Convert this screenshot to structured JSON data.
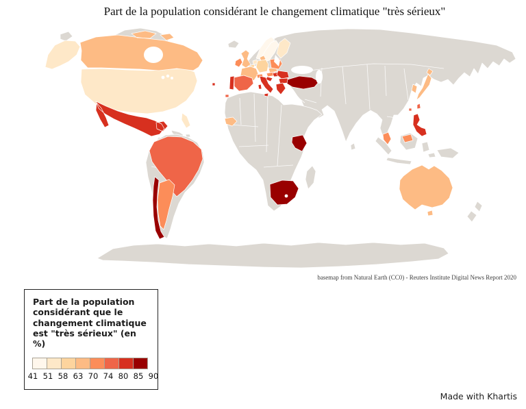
{
  "title": "Part de la population considérant le changement climatique \"très sérieux\"",
  "attribution": "basemap from Natural Earth (CC0) - Reuters Institute Digital News Report 2020",
  "credit": "Made with Khartis",
  "legend": {
    "title": "Part de la population considérant que le changement climatique est \"très sérieux\" (en %)",
    "breaks": [
      41,
      51,
      58,
      63,
      70,
      74,
      80,
      85,
      90
    ],
    "colors": [
      "#fff7ec",
      "#fee8c8",
      "#fdd49e",
      "#fdbb84",
      "#fc8d59",
      "#ef6548",
      "#d7301f",
      "#990000"
    ]
  },
  "map": {
    "no_data_color": "#dcd8d2",
    "border_color": "#ffffff",
    "countries": [
      {
        "id": "united-states",
        "name": "États-Unis",
        "color": "#fee8c8",
        "range": "51–58"
      },
      {
        "id": "canada",
        "name": "Canada",
        "color": "#fdbb84",
        "range": "63–70"
      },
      {
        "id": "mexico",
        "name": "Mexique",
        "color": "#d7301f",
        "range": "80–85"
      },
      {
        "id": "brazil",
        "name": "Brésil",
        "color": "#ef6548",
        "range": "74–80"
      },
      {
        "id": "argentina",
        "name": "Argentine",
        "color": "#fc8d59",
        "range": "70–74"
      },
      {
        "id": "chile",
        "name": "Chili",
        "color": "#990000",
        "range": "85–90"
      },
      {
        "id": "norway",
        "name": "Norvège",
        "color": "#fff7ec",
        "range": "41–51"
      },
      {
        "id": "sweden",
        "name": "Suède",
        "color": "#fff7ec",
        "range": "41–51"
      },
      {
        "id": "finland",
        "name": "Finlande",
        "color": "#fee8c8",
        "range": "51–58"
      },
      {
        "id": "denmark",
        "name": "Danemark",
        "color": "#fdbb84",
        "range": "63–70"
      },
      {
        "id": "united-kingdom",
        "name": "Royaume-Uni",
        "color": "#fdbb84",
        "range": "63–70"
      },
      {
        "id": "ireland",
        "name": "Irlande",
        "color": "#fc8d59",
        "range": "70–74"
      },
      {
        "id": "netherlands",
        "name": "Pays-Bas",
        "color": "#fee8c8",
        "range": "51–58"
      },
      {
        "id": "belgium",
        "name": "Belgique",
        "color": "#fdd49e",
        "range": "58–63"
      },
      {
        "id": "germany",
        "name": "Allemagne",
        "color": "#fdd49e",
        "range": "58–63"
      },
      {
        "id": "france",
        "name": "France",
        "color": "#fdbb84",
        "range": "63–70"
      },
      {
        "id": "switzerland",
        "name": "Suisse",
        "color": "#fc8d59",
        "range": "70–74"
      },
      {
        "id": "austria",
        "name": "Autriche",
        "color": "#fc8d59",
        "range": "70–74"
      },
      {
        "id": "czechia",
        "name": "Tchéquie",
        "color": "#fdbb84",
        "range": "63–70"
      },
      {
        "id": "poland",
        "name": "Pologne",
        "color": "#fc8d59",
        "range": "70–74"
      },
      {
        "id": "hungary",
        "name": "Hongrie",
        "color": "#d7301f",
        "range": "80–85"
      },
      {
        "id": "croatia",
        "name": "Croatie",
        "color": "#d7301f",
        "range": "80–85"
      },
      {
        "id": "romania",
        "name": "Roumanie",
        "color": "#d7301f",
        "range": "80–85"
      },
      {
        "id": "bulgaria",
        "name": "Bulgarie",
        "color": "#d7301f",
        "range": "80–85"
      },
      {
        "id": "portugal",
        "name": "Portugal",
        "color": "#d7301f",
        "range": "80–85"
      },
      {
        "id": "spain",
        "name": "Espagne",
        "color": "#ef6548",
        "range": "74–80"
      },
      {
        "id": "italy",
        "name": "Italie",
        "color": "#d7301f",
        "range": "80–85"
      },
      {
        "id": "greece",
        "name": "Grèce",
        "color": "#d7301f",
        "range": "80–85"
      },
      {
        "id": "turkey",
        "name": "Turquie",
        "color": "#990000",
        "range": "85–90"
      },
      {
        "id": "senegal",
        "name": "Sénégal",
        "color": "#fdbb84",
        "range": "63–70"
      },
      {
        "id": "kenya",
        "name": "Kenya",
        "color": "#990000",
        "range": "85–90"
      },
      {
        "id": "south-africa",
        "name": "Afrique du Sud",
        "color": "#990000",
        "range": "85–90"
      },
      {
        "id": "south-korea",
        "name": "Corée du Sud",
        "color": "#fdbb84",
        "range": "63–70"
      },
      {
        "id": "japan",
        "name": "Japon",
        "color": "#fdbb84",
        "range": "63–70"
      },
      {
        "id": "taiwan",
        "name": "Taïwan",
        "color": "#ef6548",
        "range": "74–80"
      },
      {
        "id": "hong-kong",
        "name": "Hong Kong",
        "color": "#ef6548",
        "range": "74–80"
      },
      {
        "id": "philippines",
        "name": "Philippines",
        "color": "#d7301f",
        "range": "80–85"
      },
      {
        "id": "malaysia",
        "name": "Malaisie",
        "color": "#fc8d59",
        "range": "70–74"
      },
      {
        "id": "australia",
        "name": "Australie",
        "color": "#fdbb84",
        "range": "63–70"
      }
    ]
  }
}
